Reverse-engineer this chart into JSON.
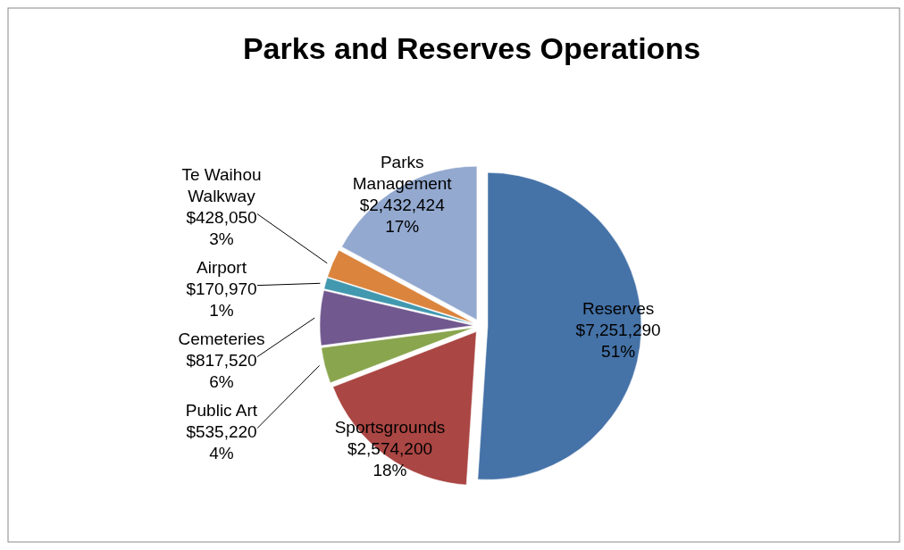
{
  "chart_data": {
    "type": "pie",
    "title": "Parks and Reserves Operations",
    "categories": [
      "Reserves",
      "Sportsgrounds",
      "Public Art",
      "Cemeteries",
      "Airport",
      "Te Waihou Walkway",
      "Parks Management"
    ],
    "values": [
      7251290,
      2574200,
      535220,
      817520,
      170970,
      428050,
      2432424
    ],
    "colors": [
      "#4572a7",
      "#aa4643",
      "#89a54e",
      "#71588f",
      "#4198af",
      "#db843d",
      "#93a9cf"
    ],
    "value_labels": [
      "$7,251,290\n51%",
      "$2,574,200\n18%",
      "$535,220\n4%",
      "$817,520\n6%",
      "$170,970\n1%",
      "$428,050\n3%",
      "$2,432,424\n17%"
    ],
    "legend": false
  }
}
